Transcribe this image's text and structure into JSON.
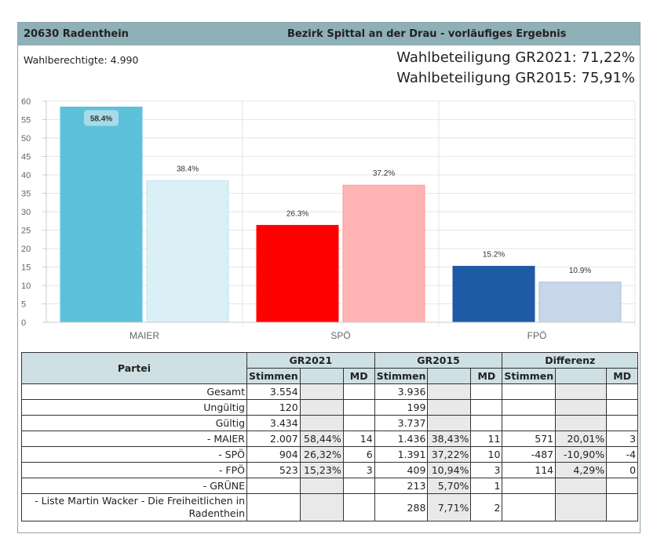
{
  "header": {
    "code_name": "20630  Radenthein",
    "district": "Bezirk Spittal an der Drau  -  vorläufiges Ergebnis"
  },
  "summary": {
    "eligible": "Wahlberechtigte:  4.990",
    "turnout_2021": "Wahlbeteiligung GR2021:  71,22%",
    "turnout_2015": "Wahlbeteiligung GR2015:  75,91%"
  },
  "colors": {
    "maier_2021": "#5dc1d9",
    "maier_2015": "#daf0f6",
    "spo_2021": "#ff0000",
    "spo_2015": "#ffb3b3",
    "fpo_2021": "#1f5aa6",
    "fpo_2015": "#c7d6e8"
  },
  "chart_data": {
    "type": "bar",
    "categories": [
      "MAIER",
      "SPÖ",
      "FPÖ"
    ],
    "series": [
      {
        "values": [
          58.4,
          26.3,
          15.2
        ]
      },
      {
        "values": [
          38.4,
          37.2,
          10.9
        ]
      }
    ],
    "data_labels": [
      [
        "58.4%",
        "26.3%",
        "15.2%"
      ],
      [
        "38.4%",
        "37.2%",
        "10.9%"
      ]
    ],
    "ylim": [
      0,
      60
    ],
    "yticks": [
      "0",
      "5",
      "10",
      "15",
      "20",
      "25",
      "30",
      "35",
      "40",
      "45",
      "50",
      "55",
      "60"
    ],
    "grid": true
  },
  "table": {
    "headers": {
      "party": "Partei",
      "gr2021": "GR2021",
      "gr2015": "GR2015",
      "diff": "Differenz",
      "stimmen": "Stimmen",
      "md": "MD"
    },
    "rows": [
      {
        "party": "Gesamt",
        "s21": "3.554",
        "p21": "",
        "md21": "",
        "s15": "3.936",
        "p15": "",
        "md15": "",
        "sd": "",
        "pd": "",
        "mdd": ""
      },
      {
        "party": "Ungültig",
        "s21": "120",
        "p21": "",
        "md21": "",
        "s15": "199",
        "p15": "",
        "md15": "",
        "sd": "",
        "pd": "",
        "mdd": ""
      },
      {
        "party": "Gültig",
        "s21": "3.434",
        "p21": "",
        "md21": "",
        "s15": "3.737",
        "p15": "",
        "md15": "",
        "sd": "",
        "pd": "",
        "mdd": ""
      },
      {
        "party": "- MAIER",
        "s21": "2.007",
        "p21": "58,44%",
        "md21": "14",
        "s15": "1.436",
        "p15": "38,43%",
        "md15": "11",
        "sd": "571",
        "pd": "20,01%",
        "mdd": "3"
      },
      {
        "party": "- SPÖ",
        "s21": "904",
        "p21": "26,32%",
        "md21": "6",
        "s15": "1.391",
        "p15": "37,22%",
        "md15": "10",
        "sd": "-487",
        "pd": "-10,90%",
        "mdd": "-4"
      },
      {
        "party": "- FPÖ",
        "s21": "523",
        "p21": "15,23%",
        "md21": "3",
        "s15": "409",
        "p15": "10,94%",
        "md15": "3",
        "sd": "114",
        "pd": "4,29%",
        "mdd": "0"
      },
      {
        "party": "- GRÜNE",
        "s21": "",
        "p21": "",
        "md21": "",
        "s15": "213",
        "p15": "5,70%",
        "md15": "1",
        "sd": "",
        "pd": "",
        "mdd": ""
      },
      {
        "party": "- Liste Martin Wacker - Die Freiheitlichen in Radenthein",
        "s21": "",
        "p21": "",
        "md21": "",
        "s15": "288",
        "p15": "7,71%",
        "md15": "2",
        "sd": "",
        "pd": "",
        "mdd": ""
      }
    ]
  }
}
